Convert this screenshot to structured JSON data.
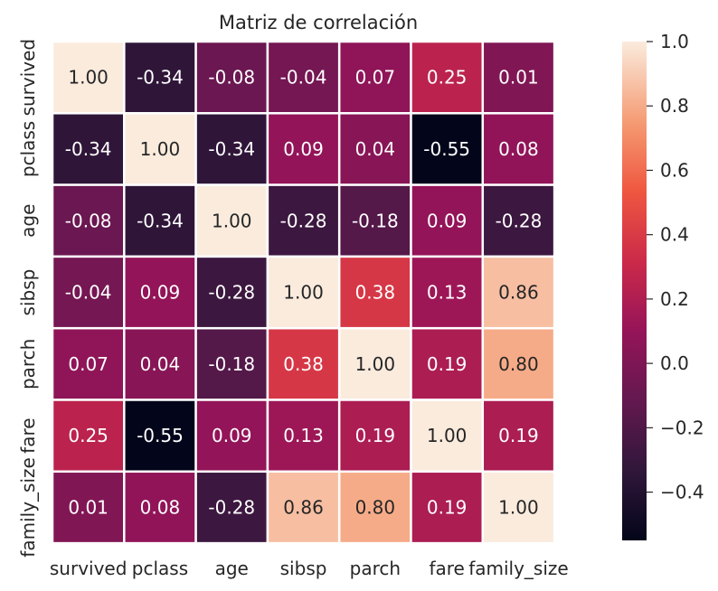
{
  "chart_data": {
    "type": "heatmap",
    "title": "Matriz de correlación",
    "xlabel": "",
    "ylabel": "",
    "categories": [
      "survived",
      "pclass",
      "age",
      "sibsp",
      "parch",
      "fare",
      "family_size"
    ],
    "values": [
      [
        1.0,
        -0.34,
        -0.08,
        -0.04,
        0.07,
        0.25,
        0.01
      ],
      [
        -0.34,
        1.0,
        -0.34,
        0.09,
        0.04,
        -0.55,
        0.08
      ],
      [
        -0.08,
        -0.34,
        1.0,
        -0.28,
        -0.18,
        0.09,
        -0.28
      ],
      [
        -0.04,
        0.09,
        -0.28,
        1.0,
        0.38,
        0.13,
        0.86
      ],
      [
        0.07,
        0.04,
        -0.18,
        0.38,
        1.0,
        0.19,
        0.8
      ],
      [
        0.25,
        -0.55,
        0.09,
        0.13,
        0.19,
        1.0,
        0.19
      ],
      [
        0.01,
        0.08,
        -0.28,
        0.86,
        0.8,
        0.19,
        1.0
      ]
    ],
    "colorbar": {
      "range": [
        -0.55,
        1.0
      ],
      "ticks": [
        -0.4,
        -0.2,
        0.0,
        0.2,
        0.4,
        0.6,
        0.8,
        1.0
      ],
      "tick_labels": [
        "−0.4",
        "−0.2",
        "0.0",
        "0.2",
        "0.4",
        "0.6",
        "0.8",
        "1.0"
      ],
      "colormap": "rocket"
    },
    "annotation_format": "0.00",
    "grid_lines_color": "#ffffff"
  }
}
